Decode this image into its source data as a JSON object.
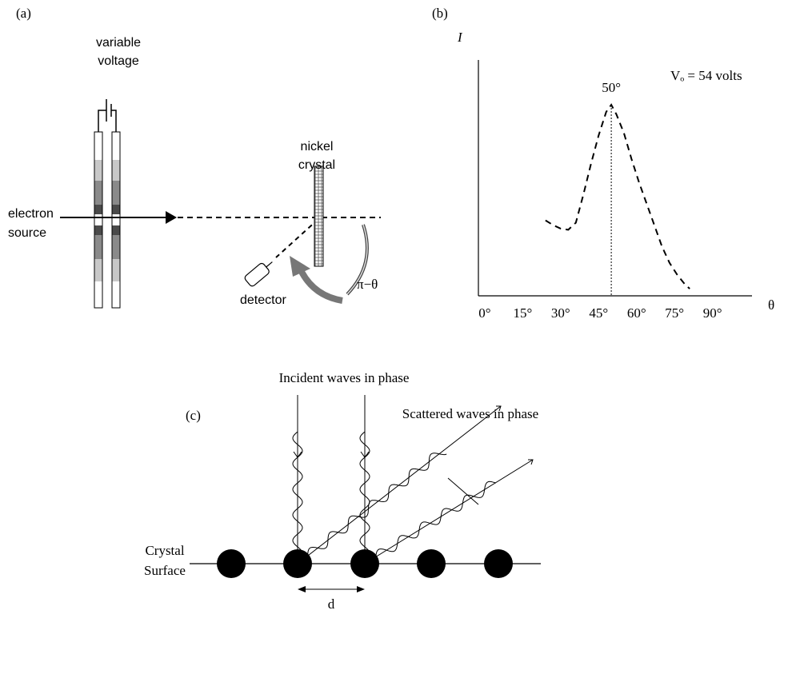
{
  "panel_labels": [
    "(a)",
    "(b)",
    "(c)"
  ],
  "panel_a": {
    "voltage_label": [
      "variable",
      "voltage"
    ],
    "source_label": [
      "electron",
      "source"
    ],
    "crystal_label": [
      "nickel",
      "crystal"
    ],
    "detector_label": "detector",
    "angle_label": "π−θ"
  },
  "chart_data": {
    "type": "line",
    "y_label": "I",
    "x_label": "θ",
    "line_style": "dashed",
    "color": "#000000",
    "x": [
      24,
      27,
      30,
      33,
      36,
      39,
      42,
      45,
      48,
      50,
      52,
      55,
      58,
      61,
      64,
      67,
      70,
      73,
      76,
      79,
      81
    ],
    "values": [
      3.2,
      3.0,
      2.85,
      2.8,
      3.1,
      4.3,
      5.6,
      6.8,
      7.8,
      8.1,
      7.7,
      6.9,
      5.8,
      4.8,
      3.9,
      3.0,
      2.1,
      1.4,
      0.9,
      0.5,
      0.3
    ],
    "xlim": [
      -2.5,
      105.6
    ],
    "ylim": [
      0,
      10
    ],
    "xticks": [
      {
        "value": 0,
        "label": "0°"
      },
      {
        "value": 15,
        "label": "15°"
      },
      {
        "value": 30,
        "label": "30°"
      },
      {
        "value": 45,
        "label": "45°"
      },
      {
        "value": 60,
        "label": "60°"
      },
      {
        "value": 75,
        "label": "75°"
      },
      {
        "value": 90,
        "label": "90°"
      }
    ],
    "annotations": [
      {
        "text": "Vₒ = 54 volts"
      },
      {
        "text": "50°",
        "x": 50,
        "y": 8.1
      }
    ]
  },
  "panel_c": {
    "incident_label": "Incident waves in phase",
    "scattered_label": "Scattered waves in phase",
    "surface_label": [
      "Crystal",
      "Surface"
    ],
    "spacing_label": "d"
  }
}
